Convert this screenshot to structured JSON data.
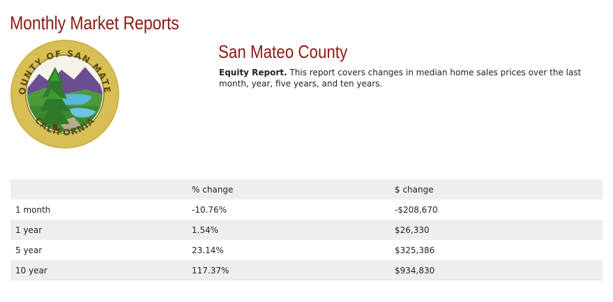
{
  "header": {
    "title": "Monthly Market Reports"
  },
  "seal": {
    "top_text": "COUNTY OF SAN MATEO",
    "bottom_text": "CALIFORNIA"
  },
  "report": {
    "county": "San Mateo County",
    "desc_bold": "Equity Report.",
    "desc_text": " This report covers changes in median home sales prices over the last month, year, five years, and ten years."
  },
  "table": {
    "headers": [
      "",
      "% change",
      "$ change"
    ],
    "rows": [
      {
        "period": "1 month",
        "pct": "-10.76%",
        "amount": "-$208,670"
      },
      {
        "period": "1 year",
        "pct": "1.54%",
        "amount": "$26,330"
      },
      {
        "period": "5 year",
        "pct": "23.14%",
        "amount": "$325,386"
      },
      {
        "period": "10 year",
        "pct": "117.37%",
        "amount": "$934,830"
      }
    ]
  },
  "colors": {
    "accent": "#8b1a13",
    "row_shade": "#eeeeee",
    "seal_gold": "#c9ad3f"
  }
}
